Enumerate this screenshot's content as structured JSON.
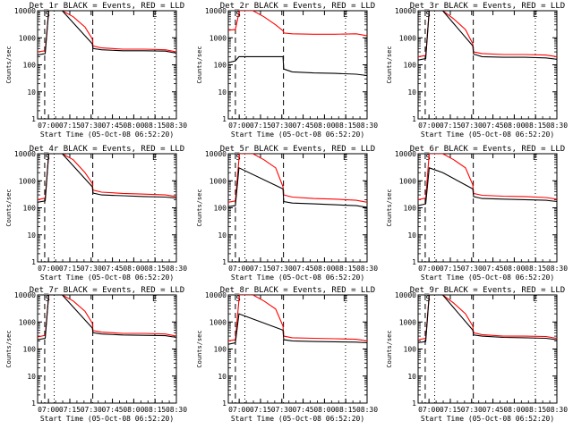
{
  "chart_data": [
    {
      "type": "line",
      "title": "Det_1r BLACK = Events, RED = LLD",
      "xlabel": "Start Time (05-Oct-08 06:52:20)",
      "ylabel": "Counts/sec",
      "y_scale": "log",
      "ylim": [
        1,
        10000
      ],
      "y_ticks": [
        "1",
        "10",
        "100",
        "1000",
        "10000"
      ],
      "xlim": [
        0,
        5860
      ],
      "x_ticks": [
        "07:00",
        "07:15",
        "07:30",
        "07:45",
        "08:00",
        "08:15",
        "08:30"
      ],
      "marks": [
        "S",
        "E"
      ],
      "series": [
        {
          "color": "#000000",
          "x": [
            0,
            320,
            470,
            1040,
            2310,
            2340,
            2700,
            3600,
            4500,
            5400,
            5860
          ],
          "values": [
            230,
            260,
            10000,
            10000,
            600,
            400,
            360,
            330,
            330,
            320,
            270
          ]
        },
        {
          "color": "#ff0000",
          "x": [
            0,
            320,
            470,
            1040,
            1500,
            2000,
            2310,
            2340,
            2700,
            3600,
            4500,
            5400,
            5860
          ],
          "values": [
            300,
            330,
            10000,
            10000,
            6000,
            2500,
            900,
            500,
            420,
            380,
            380,
            360,
            300
          ]
        }
      ]
    },
    {
      "type": "line",
      "title": "Det_2r BLACK = Events, RED = LLD",
      "xlabel": "Start Time (05-Oct-08 06:52:20)",
      "ylabel": "Counts/sec",
      "y_scale": "log",
      "ylim": [
        1,
        10000
      ],
      "y_ticks": [
        "1",
        "10",
        "100",
        "1000",
        "10000"
      ],
      "xlim": [
        0,
        5860
      ],
      "x_ticks": [
        "07:00",
        "07:15",
        "07:30",
        "07:45",
        "08:00",
        "08:15",
        "08:30"
      ],
      "marks": [
        "S",
        "E"
      ],
      "series": [
        {
          "color": "#000000",
          "x": [
            0,
            300,
            450,
            2310,
            2340,
            2700,
            3600,
            4500,
            5400,
            5860
          ],
          "values": [
            120,
            140,
            200,
            200,
            70,
            55,
            50,
            48,
            45,
            40
          ]
        },
        {
          "color": "#ff0000",
          "x": [
            0,
            300,
            470,
            1040,
            1500,
            2000,
            2310,
            2340,
            2700,
            3600,
            4500,
            5400,
            5860
          ],
          "values": [
            1900,
            2000,
            10000,
            10000,
            6000,
            3000,
            1800,
            1500,
            1400,
            1350,
            1350,
            1400,
            1200
          ]
        }
      ]
    },
    {
      "type": "line",
      "title": "Det_3r BLACK = Events, RED = LLD",
      "xlabel": "Start Time (05-Oct-08 06:52:20)",
      "ylabel": "Counts/sec",
      "y_scale": "log",
      "ylim": [
        1,
        10000
      ],
      "y_ticks": [
        "1",
        "10",
        "100",
        "1000",
        "10000"
      ],
      "xlim": [
        0,
        5860
      ],
      "x_ticks": [
        "07:00",
        "07:15",
        "07:30",
        "07:45",
        "08:00",
        "08:15",
        "08:30"
      ],
      "marks": [
        "S",
        "E"
      ],
      "series": [
        {
          "color": "#000000",
          "x": [
            0,
            320,
            470,
            1040,
            2310,
            2340,
            2700,
            3600,
            4500,
            5400,
            5860
          ],
          "values": [
            150,
            170,
            10000,
            10000,
            500,
            250,
            200,
            190,
            190,
            180,
            160
          ]
        },
        {
          "color": "#ff0000",
          "x": [
            0,
            320,
            470,
            1040,
            1500,
            2000,
            2310,
            2340,
            2700,
            3600,
            4500,
            5400,
            5860
          ],
          "values": [
            200,
            220,
            10000,
            10000,
            5000,
            2000,
            600,
            300,
            260,
            240,
            240,
            230,
            200
          ]
        }
      ]
    },
    {
      "type": "line",
      "title": "Det_4r BLACK = Events, RED = LLD",
      "xlabel": "Start Time (05-Oct-08 06:52:20)",
      "ylabel": "Counts/sec",
      "y_scale": "log",
      "ylim": [
        1,
        10000
      ],
      "y_ticks": [
        "1",
        "10",
        "100",
        "1000",
        "10000"
      ],
      "xlim": [
        0,
        5860
      ],
      "x_ticks": [
        "07:00",
        "07:15",
        "07:30",
        "07:45",
        "08:00",
        "08:15",
        "08:30"
      ],
      "marks": [
        "S",
        "E"
      ],
      "series": [
        {
          "color": "#000000",
          "x": [
            0,
            320,
            470,
            1040,
            2310,
            2340,
            2700,
            3600,
            4500,
            5400,
            5860
          ],
          "values": [
            160,
            180,
            10000,
            10000,
            600,
            350,
            300,
            280,
            260,
            250,
            230
          ]
        },
        {
          "color": "#ff0000",
          "x": [
            0,
            320,
            470,
            1040,
            1500,
            2000,
            2310,
            2340,
            2700,
            3600,
            4500,
            5400,
            5860
          ],
          "values": [
            200,
            230,
            10000,
            10000,
            6000,
            2000,
            800,
            450,
            380,
            340,
            320,
            300,
            260
          ]
        }
      ]
    },
    {
      "type": "line",
      "title": "Det_5r BLACK = Events, RED = LLD",
      "xlabel": "Start Time (05-Oct-08 06:52:20)",
      "ylabel": "Counts/sec",
      "y_scale": "log",
      "ylim": [
        1,
        10000
      ],
      "y_ticks": [
        "1",
        "10",
        "100",
        "1000",
        "10000"
      ],
      "xlim": [
        0,
        5860
      ],
      "x_ticks": [
        "07:00",
        "07:15",
        "07:30",
        "07:45",
        "08:00",
        "08:15",
        "08:30"
      ],
      "marks": [
        "S",
        "E"
      ],
      "series": [
        {
          "color": "#000000",
          "x": [
            0,
            300,
            450,
            2310,
            2340,
            2700,
            3600,
            4500,
            5400,
            5860
          ],
          "values": [
            110,
            120,
            3000,
            500,
            170,
            150,
            140,
            130,
            120,
            105
          ]
        },
        {
          "color": "#ff0000",
          "x": [
            0,
            300,
            470,
            1040,
            1500,
            2000,
            2310,
            2340,
            2700,
            3600,
            4500,
            5400,
            5860
          ],
          "values": [
            160,
            180,
            10000,
            10000,
            6000,
            3000,
            600,
            300,
            250,
            220,
            210,
            190,
            160
          ]
        }
      ]
    },
    {
      "type": "line",
      "title": "Det_6r BLACK = Events, RED = LLD",
      "xlabel": "Start Time (05-Oct-08 06:52:20)",
      "ylabel": "Counts/sec",
      "y_scale": "log",
      "ylim": [
        1,
        10000
      ],
      "y_ticks": [
        "1",
        "10",
        "100",
        "1000",
        "10000"
      ],
      "xlim": [
        0,
        5860
      ],
      "x_ticks": [
        "07:00",
        "07:15",
        "07:30",
        "07:45",
        "08:00",
        "08:15",
        "08:30"
      ],
      "marks": [
        "S",
        "E"
      ],
      "series": [
        {
          "color": "#000000",
          "x": [
            0,
            320,
            470,
            1040,
            2310,
            2340,
            2700,
            3600,
            4500,
            5400,
            5860
          ],
          "values": [
            120,
            140,
            3000,
            2000,
            500,
            260,
            220,
            210,
            200,
            190,
            170
          ]
        },
        {
          "color": "#ff0000",
          "x": [
            0,
            320,
            470,
            1040,
            1500,
            2000,
            2310,
            2340,
            2700,
            3600,
            4500,
            5400,
            5860
          ],
          "values": [
            200,
            230,
            10000,
            10000,
            6000,
            3000,
            700,
            340,
            290,
            270,
            260,
            240,
            210
          ]
        }
      ]
    },
    {
      "type": "line",
      "title": "Det_7r BLACK = Events, RED = LLD",
      "xlabel": "Start Time (05-Oct-08 06:52:20)",
      "ylabel": "Counts/sec",
      "y_scale": "log",
      "ylim": [
        1,
        10000
      ],
      "y_ticks": [
        "1",
        "10",
        "100",
        "1000",
        "10000"
      ],
      "xlim": [
        0,
        5860
      ],
      "x_ticks": [
        "07:00",
        "07:15",
        "07:30",
        "07:45",
        "08:00",
        "08:15",
        "08:30"
      ],
      "marks": [
        "S",
        "E"
      ],
      "series": [
        {
          "color": "#000000",
          "x": [
            0,
            320,
            470,
            1040,
            2310,
            2340,
            2700,
            3600,
            4500,
            5400,
            5860
          ],
          "values": [
            220,
            250,
            10000,
            10000,
            600,
            400,
            360,
            330,
            320,
            310,
            270
          ]
        },
        {
          "color": "#ff0000",
          "x": [
            0,
            320,
            470,
            1040,
            1500,
            2000,
            2310,
            2340,
            2700,
            3600,
            4500,
            5400,
            5860
          ],
          "values": [
            280,
            320,
            10000,
            10000,
            6000,
            2500,
            900,
            480,
            420,
            380,
            380,
            360,
            300
          ]
        }
      ]
    },
    {
      "type": "line",
      "title": "Det_8r BLACK = Events, RED = LLD",
      "xlabel": "Start Time (05-Oct-08 06:52:20)",
      "ylabel": "Counts/sec",
      "y_scale": "log",
      "ylim": [
        1,
        10000
      ],
      "y_ticks": [
        "1",
        "10",
        "100",
        "1000",
        "10000"
      ],
      "xlim": [
        0,
        5860
      ],
      "x_ticks": [
        "07:00",
        "07:15",
        "07:30",
        "07:45",
        "08:00",
        "08:15",
        "08:30"
      ],
      "marks": [
        "S",
        "E"
      ],
      "series": [
        {
          "color": "#000000",
          "x": [
            0,
            300,
            450,
            2310,
            2340,
            2700,
            3600,
            4500,
            5400,
            5860
          ],
          "values": [
            150,
            170,
            2000,
            500,
            220,
            200,
            190,
            185,
            180,
            170
          ]
        },
        {
          "color": "#ff0000",
          "x": [
            0,
            300,
            470,
            1040,
            1500,
            2000,
            2310,
            2340,
            2700,
            3600,
            4500,
            5400,
            5860
          ],
          "values": [
            200,
            220,
            10000,
            10000,
            6000,
            3000,
            700,
            300,
            260,
            250,
            240,
            230,
            200
          ]
        }
      ]
    },
    {
      "type": "line",
      "title": "Det_9r BLACK = Events, RED = LLD",
      "xlabel": "Start Time (05-Oct-08 06:52:20)",
      "ylabel": "Counts/sec",
      "y_scale": "log",
      "ylim": [
        1,
        10000
      ],
      "y_ticks": [
        "1",
        "10",
        "100",
        "1000",
        "10000"
      ],
      "xlim": [
        0,
        5860
      ],
      "x_ticks": [
        "07:00",
        "07:15",
        "07:30",
        "07:45",
        "08:00",
        "08:15",
        "08:30"
      ],
      "marks": [
        "S",
        "E"
      ],
      "series": [
        {
          "color": "#000000",
          "x": [
            0,
            320,
            470,
            1040,
            2310,
            2340,
            2700,
            3600,
            4500,
            5400,
            5860
          ],
          "values": [
            170,
            190,
            10000,
            10000,
            500,
            330,
            300,
            270,
            260,
            250,
            220
          ]
        },
        {
          "color": "#ff0000",
          "x": [
            0,
            320,
            470,
            1040,
            1500,
            2000,
            2310,
            2340,
            2700,
            3600,
            4500,
            5400,
            5860
          ],
          "values": [
            220,
            250,
            10000,
            10000,
            5000,
            2000,
            700,
            400,
            340,
            300,
            300,
            290,
            250
          ]
        }
      ]
    }
  ]
}
